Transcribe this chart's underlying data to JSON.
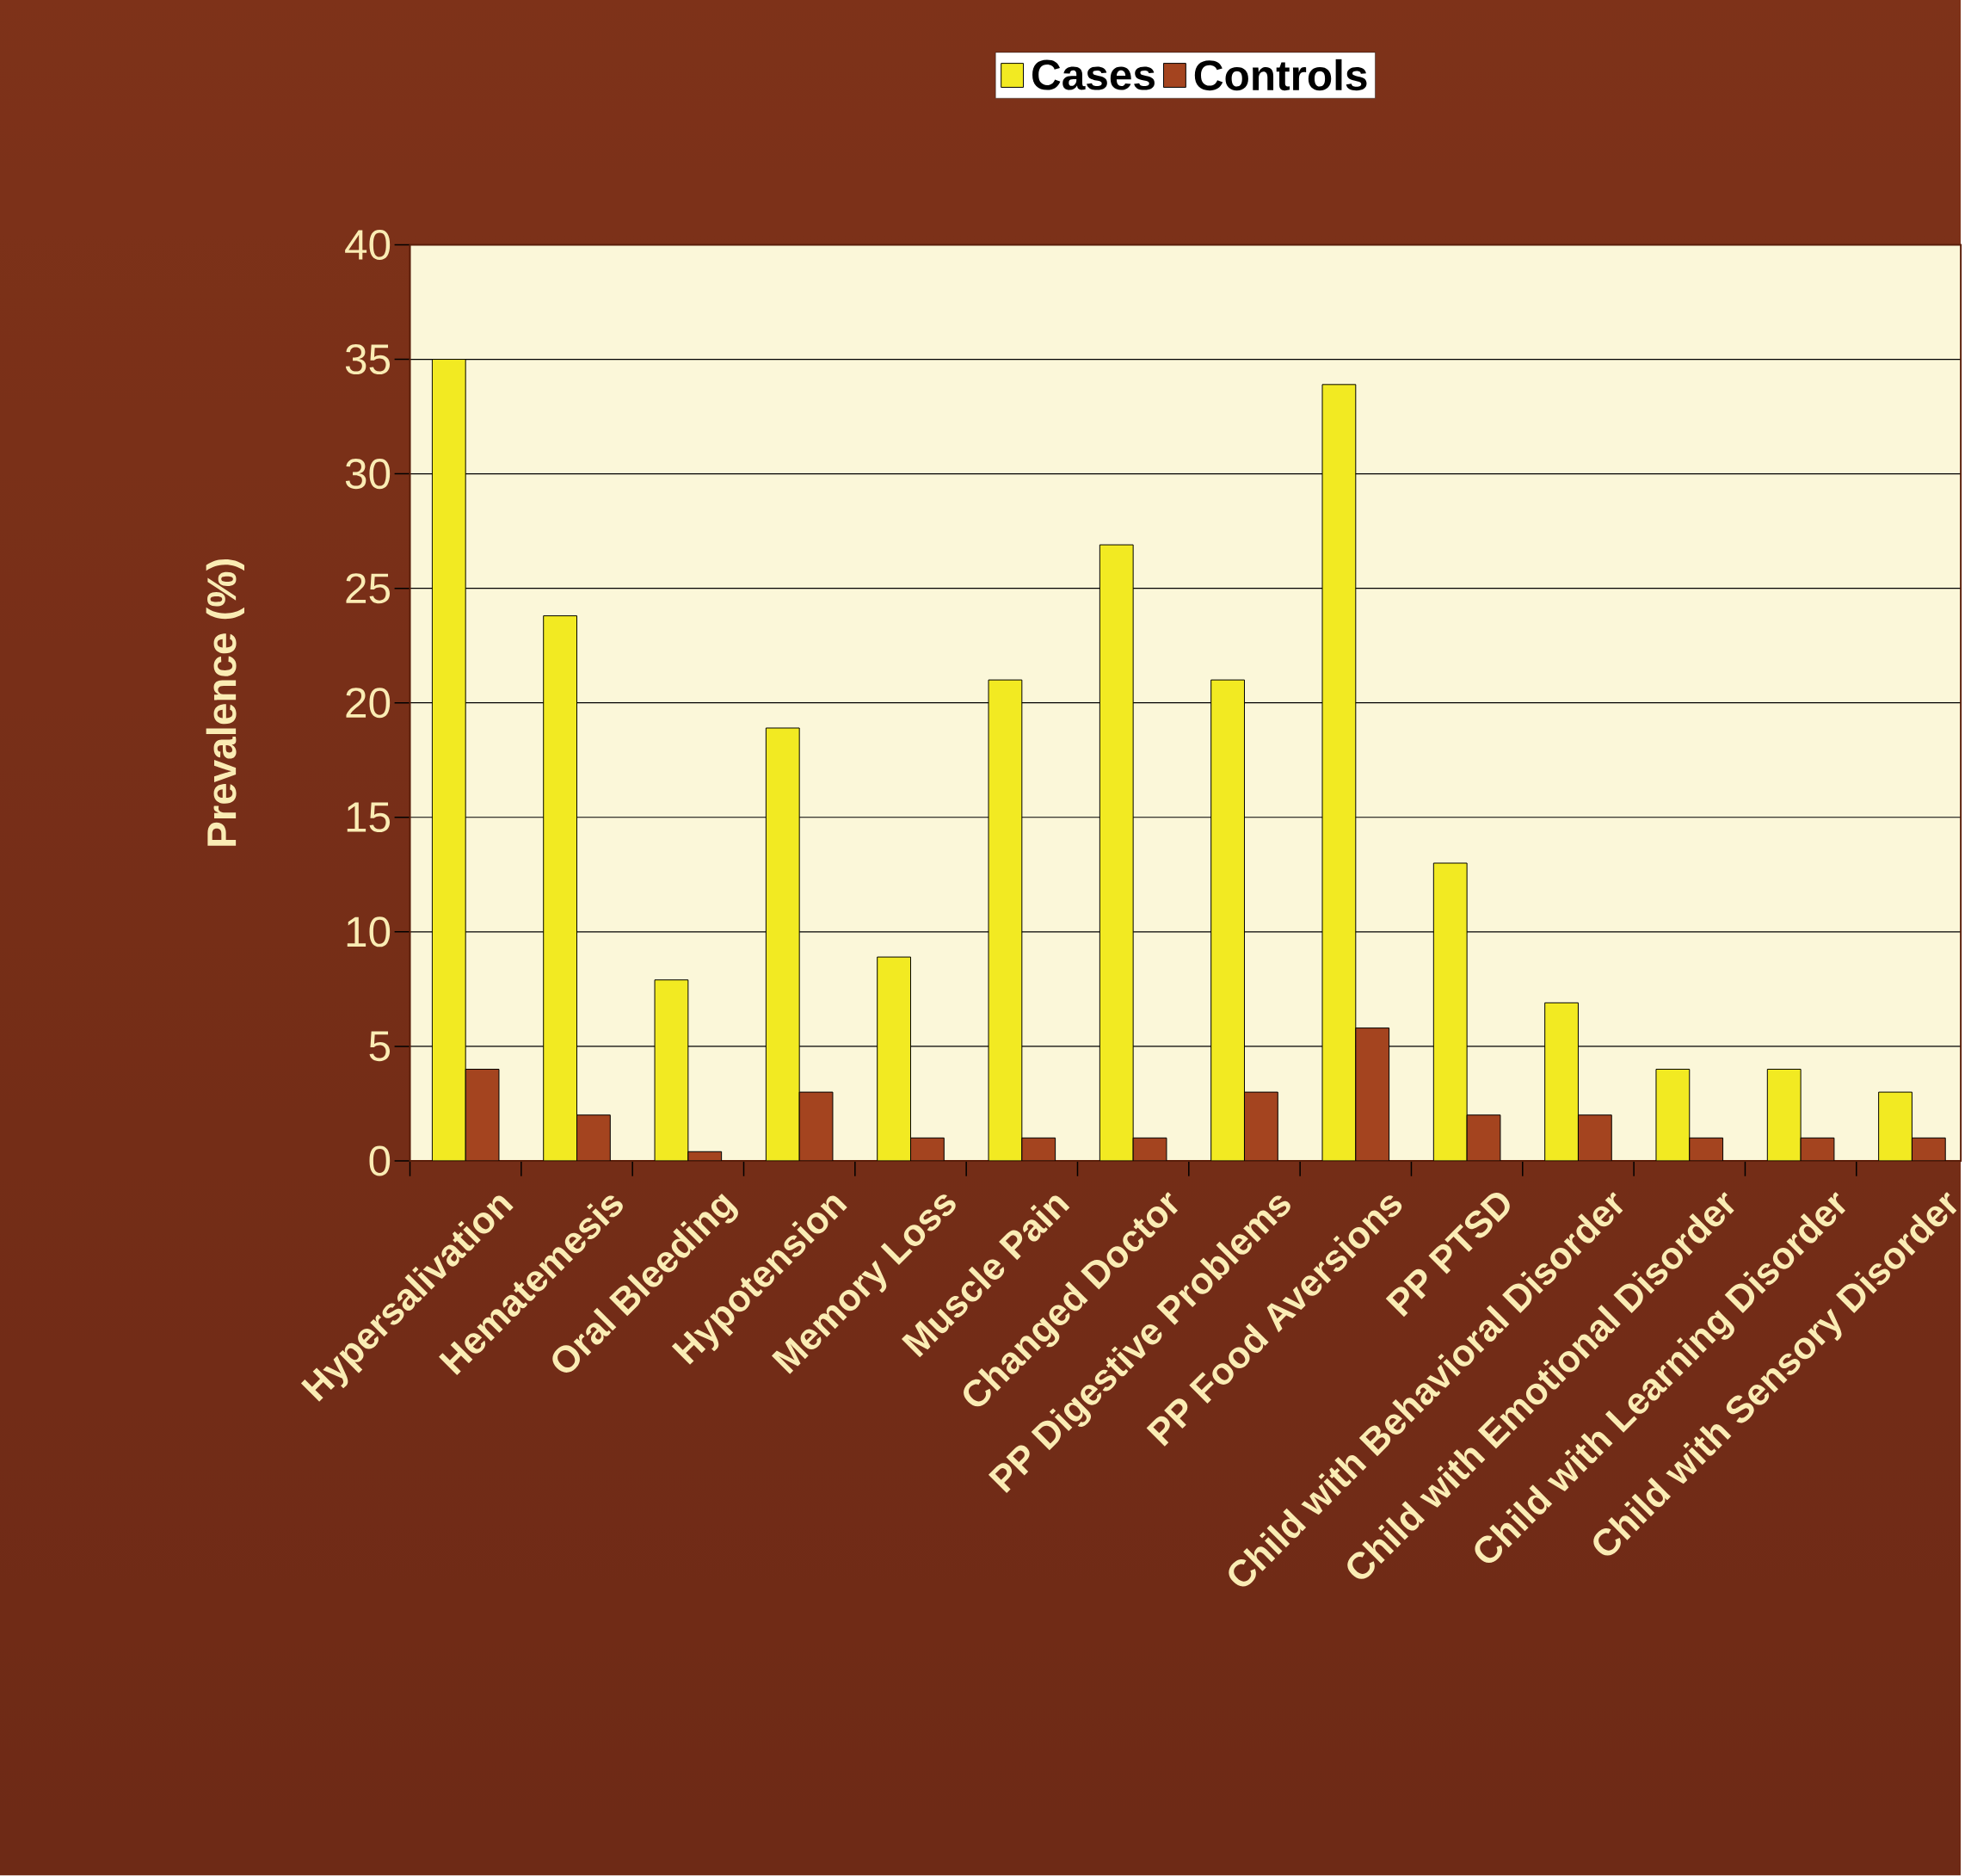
{
  "chart_data": {
    "type": "bar",
    "ylabel": "Prevalence (%)",
    "categories": [
      "Hypersalivation",
      "Hematemesis",
      "Oral Bleeding",
      "Hypotension",
      "Memory Loss",
      "Muscle Pain",
      "Changed Doctor",
      "PP Digestive  Problems",
      "PP Food Aversions",
      "PP PTSD",
      "Child with Behavioral Disorder",
      "Child with Emotional Disorder",
      "Child with Learning Disorder",
      "Child with Sensory Disorder"
    ],
    "series": [
      {
        "name": "Cases",
        "color": "#f2ea22",
        "values": [
          35,
          23.8,
          7.9,
          18.9,
          8.9,
          21,
          26.9,
          21,
          33.9,
          13,
          6.9,
          4,
          4,
          3
        ]
      },
      {
        "name": "Controls",
        "color": "#a4441f",
        "values": [
          4,
          2,
          0.4,
          3,
          1,
          1,
          1,
          3,
          5.8,
          2,
          2,
          1,
          1,
          1
        ]
      }
    ],
    "ylim": [
      0,
      40
    ],
    "yticks": [
      0,
      5,
      10,
      15,
      20,
      25,
      30,
      35,
      40
    ],
    "grid": "y",
    "legend": "top"
  }
}
